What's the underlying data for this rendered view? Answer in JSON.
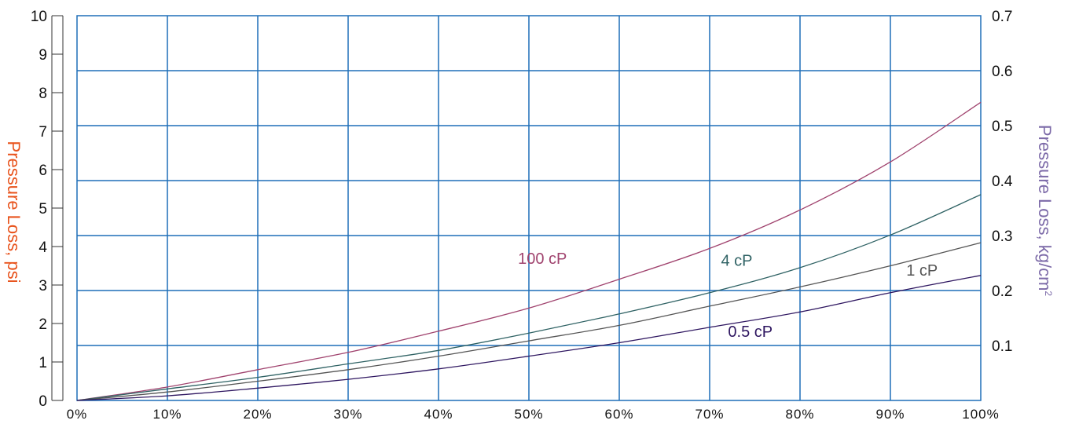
{
  "colors": {
    "grid": "#1f6fb8",
    "left_axis_title": "#e8531c",
    "right_axis_title": "#7c6aa8",
    "axis": "#333333"
  },
  "chart_data": {
    "type": "line",
    "title": "",
    "xlabel": "",
    "x_ticks": [
      "0%",
      "10%",
      "20%",
      "30%",
      "40%",
      "50%",
      "60%",
      "70%",
      "80%",
      "90%",
      "100%"
    ],
    "xlim": [
      0,
      100
    ],
    "ylabel_left": "Pressure Loss, psi",
    "ylim_left": [
      0,
      10
    ],
    "y_ticks_left": [
      "0",
      "1",
      "2",
      "3",
      "4",
      "5",
      "6",
      "7",
      "8",
      "9",
      "10"
    ],
    "ylabel_right": "Pressure Loss, kg/cm",
    "ylabel_right_superscript": "2",
    "ylim_right": [
      0,
      0.7
    ],
    "y_ticks_right": [
      "0.1",
      "0.2",
      "0.3",
      "0.4",
      "0.5",
      "0.6",
      "0.7"
    ],
    "grid": true,
    "series": [
      {
        "name": "100 cP",
        "color": "#a0436e",
        "x": [
          0,
          10,
          20,
          30,
          40,
          50,
          60,
          70,
          80,
          90,
          100
        ],
        "y": [
          0,
          0.35,
          0.8,
          1.25,
          1.8,
          2.4,
          3.15,
          3.95,
          4.95,
          6.2,
          7.75
        ]
      },
      {
        "name": "4 cP",
        "color": "#2f6264",
        "x": [
          0,
          10,
          20,
          30,
          40,
          50,
          60,
          70,
          80,
          90,
          100
        ],
        "y": [
          0,
          0.3,
          0.6,
          0.95,
          1.3,
          1.75,
          2.25,
          2.8,
          3.45,
          4.3,
          5.35
        ]
      },
      {
        "name": "1 cP",
        "color": "#555555",
        "x": [
          0,
          10,
          20,
          30,
          40,
          50,
          60,
          70,
          80,
          90,
          100
        ],
        "y": [
          0,
          0.22,
          0.5,
          0.8,
          1.15,
          1.55,
          1.95,
          2.45,
          2.95,
          3.5,
          4.1
        ]
      },
      {
        "name": "0.5 cP",
        "color": "#2e1660",
        "x": [
          0,
          10,
          20,
          30,
          40,
          50,
          60,
          70,
          80,
          90,
          100
        ],
        "y": [
          0,
          0.12,
          0.32,
          0.55,
          0.82,
          1.15,
          1.5,
          1.9,
          2.3,
          2.8,
          3.25
        ]
      }
    ]
  }
}
